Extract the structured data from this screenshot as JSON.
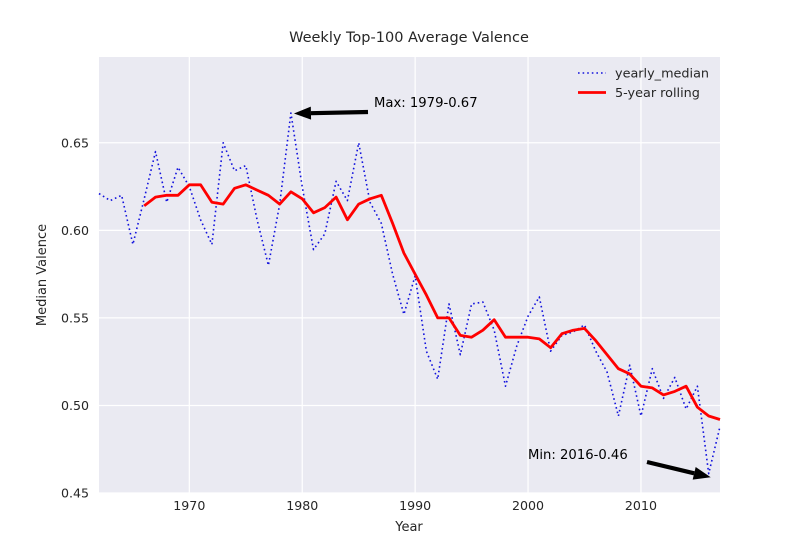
{
  "title": "Weekly Top-100 Average Valence",
  "axes": {
    "xlabel": "Year",
    "ylabel": "Median Valence",
    "x_tick_labels": [
      "1970",
      "1980",
      "1990",
      "2000",
      "2010"
    ],
    "y_tick_labels": [
      "0.45",
      "0.50",
      "0.55",
      "0.60",
      "0.65"
    ]
  },
  "legend": {
    "items": [
      {
        "label": "yearly_median",
        "color": "#1212dd",
        "linestyle": "dotted"
      },
      {
        "label": "5-year rolling",
        "color": "#ff0000",
        "linestyle": "solid"
      }
    ]
  },
  "annotations": [
    {
      "text": "Max: 1979-0.67",
      "year": 1979,
      "value": 0.667
    },
    {
      "text": "Min: 2016-0.46",
      "year": 2016,
      "value": 0.461
    }
  ],
  "colors": {
    "figure_bg": "#ffffff",
    "axes_bg": "#eaeaf2",
    "grid": "#ffffff",
    "yearly_median": "#1212dd",
    "rolling": "#ff0000",
    "text": "#262626",
    "annotation_arrow": "#000000"
  },
  "chart_data": {
    "type": "line",
    "title": "Weekly Top-100 Average Valence",
    "xlabel": "Year",
    "ylabel": "Median Valence",
    "xlim": [
      1962,
      2017
    ],
    "ylim": [
      0.45,
      0.699
    ],
    "x_ticks": [
      1970,
      1980,
      1990,
      2000,
      2010
    ],
    "y_ticks": [
      0.45,
      0.5,
      0.55,
      0.6,
      0.65
    ],
    "grid": true,
    "legend_position": "upper right",
    "x": [
      1962,
      1963,
      1964,
      1965,
      1966,
      1967,
      1968,
      1969,
      1970,
      1971,
      1972,
      1973,
      1974,
      1975,
      1976,
      1977,
      1978,
      1979,
      1980,
      1981,
      1982,
      1983,
      1984,
      1985,
      1986,
      1987,
      1988,
      1989,
      1990,
      1991,
      1992,
      1993,
      1994,
      1995,
      1996,
      1997,
      1998,
      1999,
      2000,
      2001,
      2002,
      2003,
      2004,
      2005,
      2006,
      2007,
      2008,
      2009,
      2010,
      2011,
      2012,
      2013,
      2014,
      2015,
      2016,
      2017
    ],
    "series": [
      {
        "name": "yearly_median",
        "linestyle": "dotted",
        "color": "#1212dd",
        "start_year": 1962,
        "values": [
          0.621,
          0.617,
          0.62,
          0.592,
          0.618,
          0.645,
          0.616,
          0.636,
          0.625,
          0.606,
          0.592,
          0.65,
          0.634,
          0.637,
          0.606,
          0.58,
          0.615,
          0.667,
          0.625,
          0.589,
          0.598,
          0.628,
          0.617,
          0.65,
          0.616,
          0.604,
          0.575,
          0.552,
          0.574,
          0.531,
          0.515,
          0.558,
          0.529,
          0.558,
          0.559,
          0.543,
          0.511,
          0.534,
          0.551,
          0.562,
          0.531,
          0.54,
          0.542,
          0.546,
          0.531,
          0.519,
          0.494,
          0.523,
          0.494,
          0.521,
          0.504,
          0.516,
          0.498,
          0.511,
          0.461,
          0.488
        ]
      },
      {
        "name": "5-year rolling",
        "linestyle": "solid",
        "color": "#ff0000",
        "start_year": 1966,
        "values": [
          0.614,
          0.619,
          0.62,
          0.62,
          0.626,
          0.626,
          0.616,
          0.615,
          0.624,
          0.626,
          0.623,
          0.62,
          0.615,
          0.622,
          0.618,
          0.61,
          0.613,
          0.619,
          0.606,
          0.615,
          0.618,
          0.62,
          0.604,
          0.587,
          0.575,
          0.563,
          0.55,
          0.55,
          0.54,
          0.539,
          0.543,
          0.549,
          0.539,
          0.539,
          0.539,
          0.538,
          0.533,
          0.541,
          0.543,
          0.544,
          0.537,
          0.529,
          0.521,
          0.518,
          0.511,
          0.51,
          0.506,
          0.508,
          0.511,
          0.499,
          0.494,
          0.492
        ]
      }
    ]
  }
}
